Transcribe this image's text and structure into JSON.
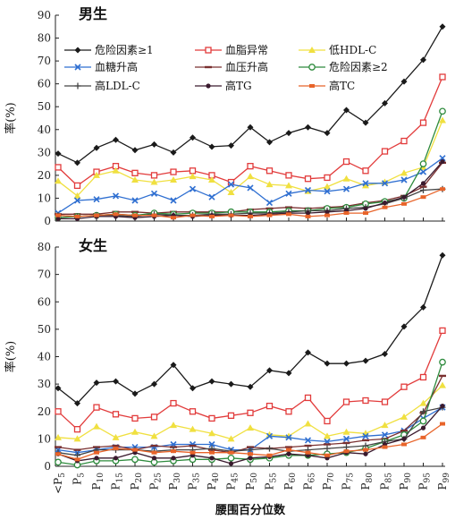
{
  "chart_data": [
    {
      "type": "line",
      "title": "男生",
      "ylabel": "率(%)",
      "xlabel": "",
      "ylim": [
        0,
        90
      ],
      "yticks": [
        0,
        10,
        20,
        30,
        40,
        50,
        60,
        70,
        80,
        90
      ],
      "categories": [
        "<P5",
        "P5",
        "P10",
        "P15",
        "P20",
        "P25",
        "P30",
        "P35",
        "P40",
        "P45",
        "P50",
        "P55",
        "P60",
        "P65",
        "P70",
        "P75",
        "P80",
        "P85",
        "P90",
        "P95",
        "P99"
      ],
      "legend_position": "top",
      "series": [
        {
          "name": "危险因素≥1",
          "color": "#1a1a1a",
          "marker": "diamond",
          "values": [
            29.5,
            25.5,
            32,
            35.5,
            31,
            33.5,
            30,
            36.5,
            32.5,
            33,
            41,
            34.5,
            38.5,
            41,
            38.5,
            48.5,
            43,
            51.5,
            61,
            70.5,
            85
          ]
        },
        {
          "name": "血脂异常",
          "color": "#e23b3b",
          "marker": "square-open",
          "values": [
            23.5,
            15.5,
            21.5,
            24,
            21,
            20,
            21.5,
            22,
            20,
            17,
            24,
            22,
            20,
            18.5,
            19,
            26,
            22,
            30.5,
            35,
            43,
            63
          ]
        },
        {
          "name": "低HDL-C",
          "color": "#f0e040",
          "marker": "triangle",
          "values": [
            17.5,
            11,
            20,
            22,
            18,
            17,
            18,
            19.5,
            18,
            12.5,
            19.5,
            16,
            15.5,
            13,
            15,
            18.5,
            15.5,
            17,
            21,
            23.5,
            44
          ]
        },
        {
          "name": "血糖升高",
          "color": "#2f6fd1",
          "marker": "cross",
          "values": [
            3.5,
            9,
            9.5,
            11,
            9,
            12,
            9,
            14,
            10.5,
            16,
            14.5,
            8,
            12,
            13.5,
            13,
            14,
            16.5,
            16.5,
            18,
            21.5,
            27.5
          ]
        },
        {
          "name": "血压升高",
          "color": "#7a3030",
          "marker": "dash",
          "values": [
            3,
            3,
            3,
            4,
            4,
            3.5,
            4,
            4,
            4,
            4,
            5,
            5.5,
            6,
            5.5,
            6,
            6.5,
            8,
            9,
            11,
            15,
            25.5
          ]
        },
        {
          "name": "危险因素≥2",
          "color": "#2e8b3d",
          "marker": "circle-open",
          "values": [
            1.5,
            2,
            2.5,
            3,
            2.5,
            3.5,
            3,
            3.5,
            3.5,
            4,
            4,
            4,
            4.5,
            4.5,
            5.5,
            6,
            7.5,
            8.5,
            10,
            25,
            48
          ]
        },
        {
          "name": "高LDL-C",
          "color": "#444444",
          "marker": "plus",
          "values": [
            2.5,
            2,
            2.5,
            2.5,
            2,
            3,
            2.5,
            2.5,
            3,
            3,
            3.5,
            3.5,
            4,
            4.5,
            4.5,
            5.5,
            6,
            7.5,
            10,
            13.5,
            14
          ]
        },
        {
          "name": "高TG",
          "color": "#3a1a2e",
          "marker": "dot",
          "values": [
            1,
            1,
            2,
            2,
            1.5,
            2,
            2.5,
            2,
            2.5,
            2.5,
            2.5,
            3,
            3.5,
            3.5,
            4,
            4.5,
            5.5,
            8,
            10.5,
            16.5,
            26
          ]
        },
        {
          "name": "高TC",
          "color": "#e8642a",
          "marker": "square",
          "values": [
            2.5,
            2,
            2.5,
            3,
            2.5,
            2.5,
            1.5,
            2.5,
            2,
            2.5,
            2,
            2.5,
            3,
            2,
            2.5,
            3.5,
            3.5,
            6,
            7.5,
            10.5,
            14
          ]
        }
      ]
    },
    {
      "type": "line",
      "title": "女生",
      "ylabel": "率(%)",
      "xlabel": "腰围百分位数",
      "ylim": [
        0,
        80
      ],
      "yticks": [
        0,
        10,
        20,
        30,
        40,
        50,
        60,
        70,
        80
      ],
      "categories": [
        "<P5",
        "P5",
        "P10",
        "P15",
        "P20",
        "P25",
        "P30",
        "P35",
        "P40",
        "P45",
        "P50",
        "P55",
        "P60",
        "P65",
        "P70",
        "P75",
        "P80",
        "P85",
        "P90",
        "P95",
        "P99"
      ],
      "series": [
        {
          "name": "危险因素≥1",
          "color": "#1a1a1a",
          "marker": "diamond",
          "values": [
            28.5,
            23,
            30.5,
            31,
            26.5,
            30,
            37,
            28.5,
            31,
            30,
            29,
            35,
            34,
            41.5,
            37.5,
            37.5,
            38.5,
            41,
            51,
            58,
            77
          ]
        },
        {
          "name": "血脂异常",
          "color": "#e23b3b",
          "marker": "square-open",
          "values": [
            20,
            13.5,
            21.5,
            19,
            17.5,
            18,
            23,
            20,
            17.5,
            18.5,
            19.5,
            22,
            20,
            25,
            16.5,
            23.5,
            24,
            23.5,
            29,
            32.5,
            49.5
          ]
        },
        {
          "name": "低HDL-C",
          "color": "#f0e040",
          "marker": "triangle",
          "values": [
            10.5,
            10,
            14.5,
            10.5,
            12.5,
            11,
            15,
            13.5,
            12,
            10,
            14,
            11.5,
            11,
            15.5,
            11,
            12.5,
            12,
            15,
            18,
            23,
            29.5
          ]
        },
        {
          "name": "血糖升高",
          "color": "#2f6fd1",
          "marker": "cross",
          "values": [
            6,
            5,
            6,
            7,
            7,
            7,
            8,
            8,
            8,
            6,
            6,
            11,
            10.5,
            9.5,
            9,
            10,
            11,
            11.5,
            13,
            17.5,
            21.5
          ]
        },
        {
          "name": "血压升高",
          "color": "#7a3030",
          "marker": "dash",
          "values": [
            7,
            6,
            7,
            7.5,
            6,
            7.5,
            7,
            7.5,
            6,
            5,
            7,
            6.5,
            7,
            7.5,
            8,
            8.5,
            9.5,
            10,
            13,
            19.5,
            33
          ]
        },
        {
          "name": "危险因素≥2",
          "color": "#2e8b3d",
          "marker": "circle-open",
          "values": [
            1.5,
            0.5,
            2,
            2,
            2.5,
            1.5,
            2,
            2.5,
            2.5,
            3,
            2.5,
            3,
            4,
            4,
            4.5,
            5,
            6.5,
            9,
            11.5,
            16.5,
            38
          ]
        },
        {
          "name": "高LDL-C",
          "color": "#444444",
          "marker": "plus",
          "values": [
            5,
            4,
            6,
            6,
            6,
            5.5,
            6,
            6,
            6.5,
            5.5,
            6,
            6.5,
            5.5,
            6,
            6.5,
            7,
            7.5,
            9,
            10,
            20,
            21.5
          ]
        },
        {
          "name": "高TG",
          "color": "#3a1a2e",
          "marker": "dot",
          "values": [
            4.5,
            2,
            3,
            3,
            5,
            3,
            3,
            4,
            3,
            1,
            3,
            3.5,
            4.5,
            4,
            3,
            5,
            4.5,
            8,
            10,
            14,
            22
          ]
        },
        {
          "name": "高TC",
          "color": "#e8642a",
          "marker": "square",
          "values": [
            4.5,
            2.5,
            5,
            6.5,
            6,
            5,
            5.5,
            5,
            5,
            5,
            4.5,
            4,
            6,
            5,
            4,
            5.5,
            6,
            7,
            8,
            10.5,
            15.5
          ]
        }
      ]
    }
  ]
}
